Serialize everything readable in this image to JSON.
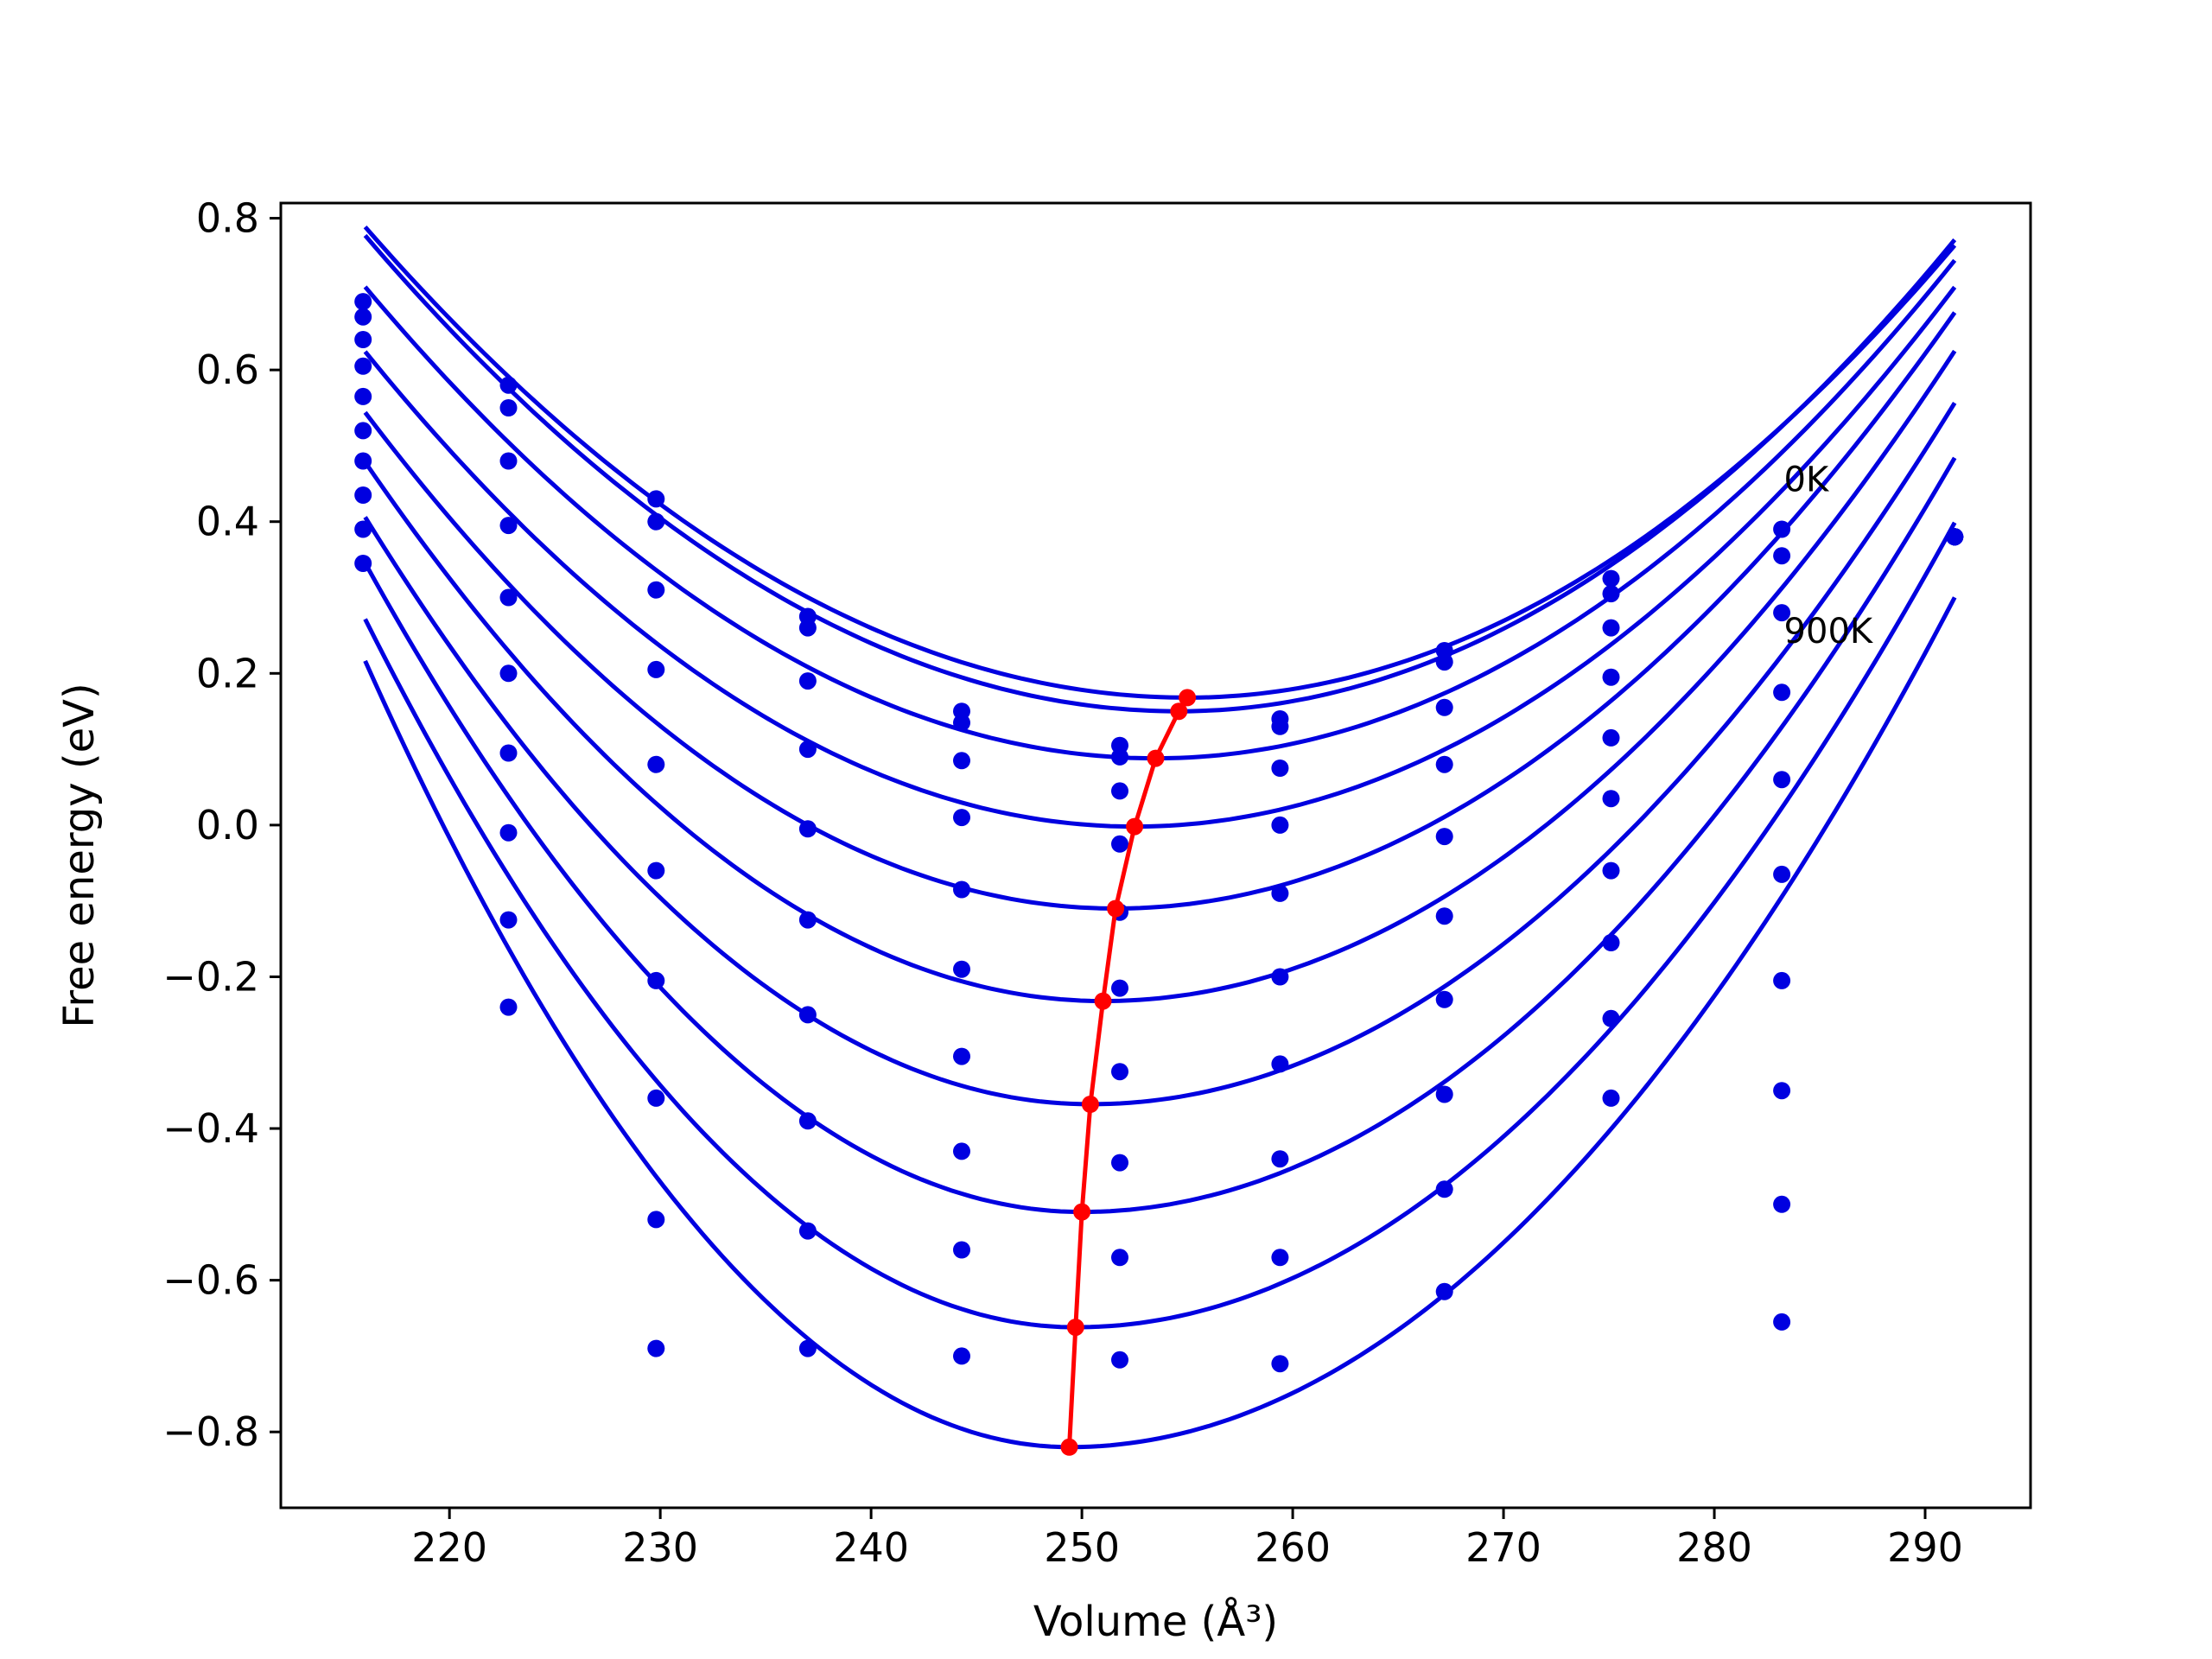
{
  "chart_data": {
    "type": "scatter",
    "xlabel": "Volume (Å³)",
    "ylabel": "Free energy (eV)",
    "xlim": [
      212,
      295
    ],
    "ylim": [
      -0.9,
      0.82
    ],
    "xticks": [
      220,
      230,
      240,
      250,
      260,
      270,
      280,
      290
    ],
    "xtick_labels": [
      "220",
      "230",
      "240",
      "250",
      "260",
      "270",
      "280",
      "290"
    ],
    "yticks": [
      -0.8,
      -0.6,
      -0.4,
      -0.2,
      0.0,
      0.2,
      0.4,
      0.6,
      0.8
    ],
    "ytick_labels": [
      "−0.8",
      "−0.6",
      "−0.4",
      "−0.2",
      "0.0",
      "0.2",
      "0.4",
      "0.6",
      "0.8"
    ],
    "annotations": [
      {
        "text": "0K",
        "x": 283.3,
        "y": 0.44
      },
      {
        "text": "900K",
        "x": 283.3,
        "y": 0.24
      }
    ],
    "colors": {
      "curves": "#0000e0",
      "points": "#0000e0",
      "minimum_path": "#ff0000"
    },
    "grid": false,
    "volumes": [
      215.9,
      222.8,
      229.8,
      237.0,
      244.3,
      251.8,
      259.4,
      267.2,
      275.1,
      283.2,
      291.4
    ],
    "point_energies": [
      [
        0.69,
        0.58,
        0.43,
        0.275,
        0.15,
        0.105,
        0.14,
        0.23,
        0.325,
        0.39,
        0.38
      ],
      [
        0.67,
        0.55,
        0.4,
        0.26,
        0.135,
        0.09,
        0.13,
        0.215,
        0.305,
        0.355,
        0.38
      ],
      [
        0.64,
        0.48,
        0.31,
        0.19,
        0.085,
        0.045,
        0.075,
        0.155,
        0.26,
        0.28,
        0.38
      ],
      [
        0.605,
        0.395,
        0.205,
        0.1,
        0.01,
        -0.025,
        0.0,
        0.08,
        0.195,
        0.175,
        0.38
      ],
      [
        0.565,
        0.3,
        0.08,
        -0.005,
        -0.085,
        -0.115,
        -0.09,
        -0.015,
        0.115,
        0.06,
        0.38
      ],
      [
        0.52,
        0.2,
        -0.06,
        -0.125,
        -0.19,
        -0.215,
        -0.2,
        -0.12,
        0.035,
        -0.065,
        0.38
      ],
      [
        0.48,
        0.095,
        -0.205,
        -0.25,
        -0.305,
        -0.325,
        -0.315,
        -0.23,
        -0.06,
        -0.205,
        0.38
      ],
      [
        0.435,
        -0.01,
        -0.36,
        -0.39,
        -0.43,
        -0.445,
        -0.44,
        -0.355,
        -0.155,
        -0.35,
        0.38
      ],
      [
        0.39,
        -0.125,
        -0.52,
        -0.535,
        -0.56,
        -0.57,
        -0.57,
        -0.48,
        -0.255,
        -0.5,
        0.38
      ],
      [
        0.345,
        -0.24,
        -0.69,
        -0.69,
        -0.7,
        -0.705,
        -0.71,
        -0.615,
        -0.36,
        -0.655,
        0.38
      ]
    ],
    "fit_curves": [
      {
        "V0": 255.0,
        "E0": 0.168,
        "k_left": 0.000408,
        "k_right": 0.00045
      },
      {
        "V0": 254.6,
        "E0": 0.15,
        "k_left": 0.000421,
        "k_right": 0.000459
      },
      {
        "V0": 253.5,
        "E0": 0.088,
        "k_left": 0.000442,
        "k_right": 0.000457
      },
      {
        "V0": 252.5,
        "E0": -0.002,
        "k_left": 0.00047,
        "k_right": 0.00047
      },
      {
        "V0": 251.6,
        "E0": -0.11,
        "k_left": 0.000516,
        "k_right": 0.000496
      },
      {
        "V0": 251.0,
        "E0": -0.232,
        "k_left": 0.00058,
        "k_right": 0.000525
      },
      {
        "V0": 250.4,
        "E0": -0.368,
        "k_left": 0.000654,
        "k_right": 0.00055
      },
      {
        "V0": 250.0,
        "E0": -0.51,
        "k_left": 0.00074,
        "k_right": 0.00058
      },
      {
        "V0": 249.7,
        "E0": -0.662,
        "k_left": 0.000822,
        "k_right": 0.00061
      },
      {
        "V0": 249.4,
        "E0": -0.82,
        "k_left": 0.000929,
        "k_right": 0.000635
      }
    ],
    "fit_range": [
      216.0,
      291.4
    ],
    "minimum_path": {
      "volumes": [
        255.0,
        254.6,
        253.5,
        252.5,
        251.6,
        251.0,
        250.4,
        250.0,
        249.7,
        249.4
      ],
      "energies": [
        0.168,
        0.15,
        0.088,
        -0.002,
        -0.11,
        -0.232,
        -0.368,
        -0.51,
        -0.662,
        -0.82
      ]
    }
  }
}
